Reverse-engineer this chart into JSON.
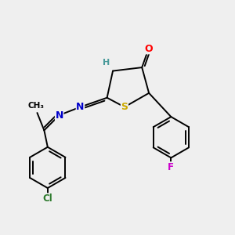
{
  "bg_color": "#efefef",
  "bond_color": "#000000",
  "atom_colors": {
    "O": "#ff0000",
    "N": "#0000cc",
    "S": "#ccaa00",
    "H": "#4a9a9a",
    "Cl": "#2d7a2d",
    "F": "#cc00cc"
  },
  "lw": 1.4,
  "fs": 8.5
}
